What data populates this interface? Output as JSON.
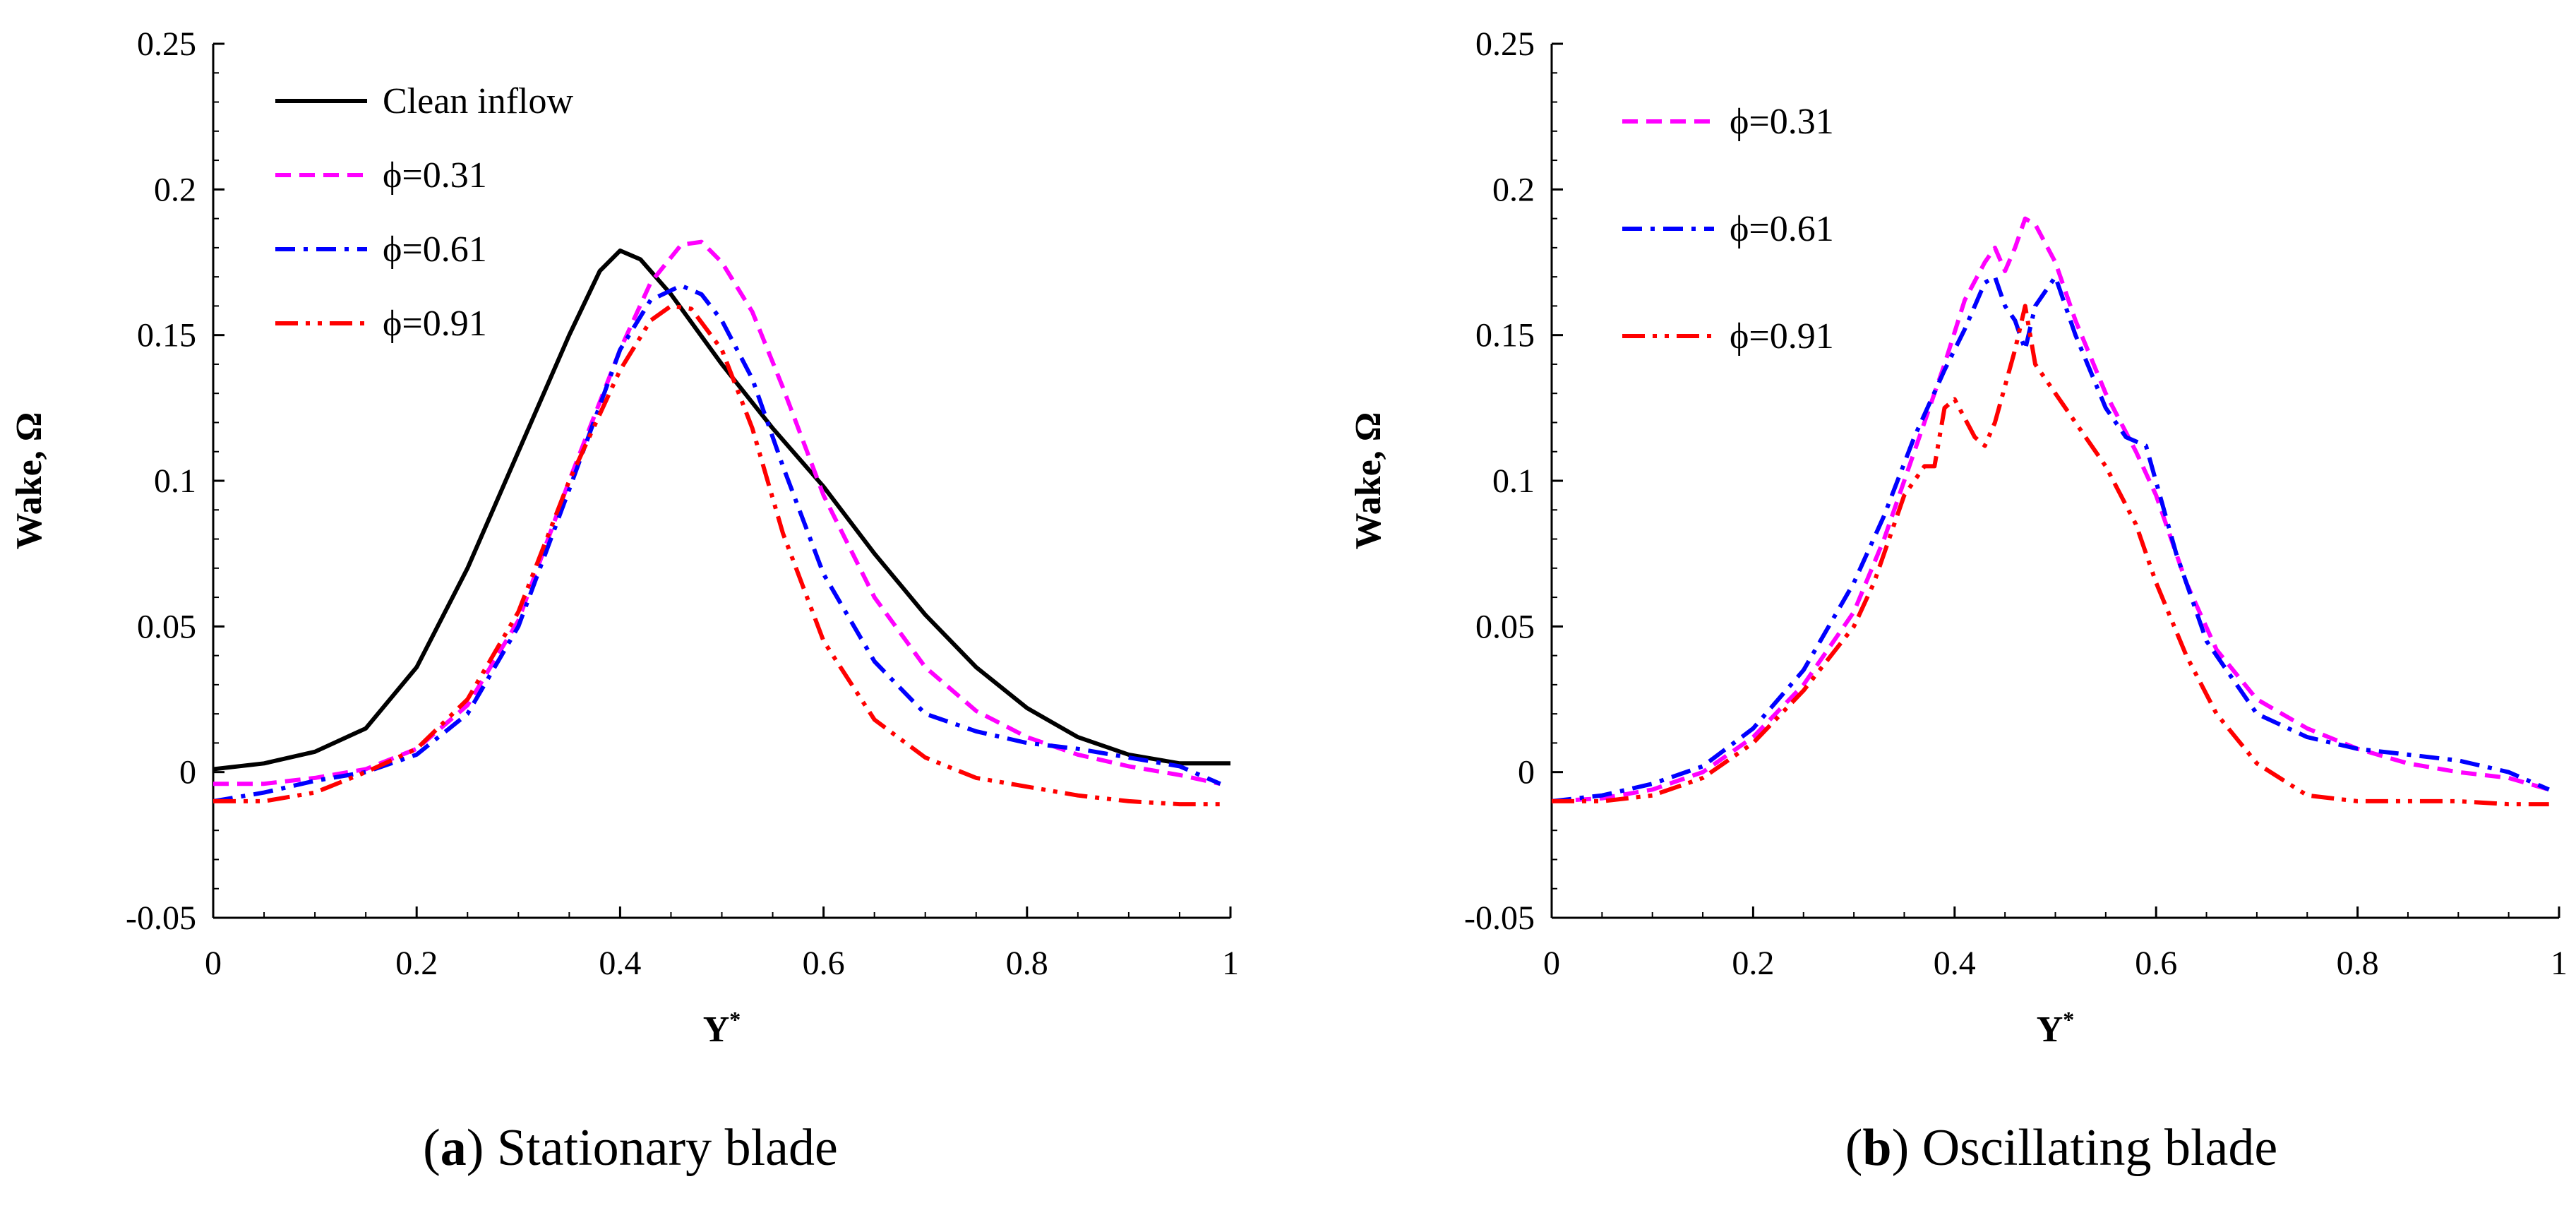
{
  "chart_data": [
    {
      "type": "line",
      "panel_letter": "a",
      "caption": "Stationary blade",
      "xlabel_main": "Y",
      "xlabel_sup": "*",
      "ylabel": "Wake, Ω",
      "xlim": [
        0,
        1
      ],
      "ylim": [
        -0.05,
        0.25
      ],
      "xticks": [
        0,
        0.2,
        0.4,
        0.6,
        0.8,
        1
      ],
      "xtick_labels": [
        "0",
        "0.2",
        "0.4",
        "0.6",
        "0.8",
        "1"
      ],
      "yticks": [
        -0.05,
        0,
        0.05,
        0.1,
        0.15,
        0.2,
        0.25
      ],
      "ytick_labels": [
        "-0.05",
        "0",
        "0.05",
        "0.1",
        "0.15",
        "0.2",
        "0.25"
      ],
      "grid": false,
      "legend_position": "top-left",
      "series": [
        {
          "name": "Clean inflow",
          "color": "#000000",
          "dash": "solid",
          "points": [
            [
              0,
              0.001
            ],
            [
              0.05,
              0.003
            ],
            [
              0.1,
              0.007
            ],
            [
              0.15,
              0.015
            ],
            [
              0.2,
              0.036
            ],
            [
              0.25,
              0.07
            ],
            [
              0.3,
              0.11
            ],
            [
              0.35,
              0.15
            ],
            [
              0.38,
              0.172
            ],
            [
              0.4,
              0.179
            ],
            [
              0.42,
              0.176
            ],
            [
              0.45,
              0.164
            ],
            [
              0.5,
              0.14
            ],
            [
              0.55,
              0.118
            ],
            [
              0.6,
              0.098
            ],
            [
              0.65,
              0.075
            ],
            [
              0.7,
              0.054
            ],
            [
              0.75,
              0.036
            ],
            [
              0.8,
              0.022
            ],
            [
              0.85,
              0.012
            ],
            [
              0.9,
              0.006
            ],
            [
              0.95,
              0.003
            ],
            [
              1,
              0.003
            ]
          ]
        },
        {
          "name": "ϕ=0.31",
          "color": "#ff00ff",
          "dash": "dash",
          "points": [
            [
              0,
              -0.004
            ],
            [
              0.05,
              -0.004
            ],
            [
              0.1,
              -0.002
            ],
            [
              0.15,
              0.001
            ],
            [
              0.2,
              0.008
            ],
            [
              0.25,
              0.023
            ],
            [
              0.3,
              0.052
            ],
            [
              0.35,
              0.1
            ],
            [
              0.4,
              0.145
            ],
            [
              0.43,
              0.168
            ],
            [
              0.46,
              0.181
            ],
            [
              0.48,
              0.182
            ],
            [
              0.5,
              0.175
            ],
            [
              0.53,
              0.158
            ],
            [
              0.56,
              0.132
            ],
            [
              0.6,
              0.095
            ],
            [
              0.65,
              0.06
            ],
            [
              0.7,
              0.036
            ],
            [
              0.75,
              0.021
            ],
            [
              0.8,
              0.012
            ],
            [
              0.85,
              0.006
            ],
            [
              0.9,
              0.002
            ],
            [
              0.95,
              -0.001
            ],
            [
              0.99,
              -0.004
            ]
          ]
        },
        {
          "name": "ϕ=0.61",
          "color": "#0000ff",
          "dash": "dashdot",
          "points": [
            [
              0,
              -0.01
            ],
            [
              0.05,
              -0.007
            ],
            [
              0.1,
              -0.003
            ],
            [
              0.15,
              0.0
            ],
            [
              0.2,
              0.006
            ],
            [
              0.25,
              0.02
            ],
            [
              0.3,
              0.05
            ],
            [
              0.35,
              0.097
            ],
            [
              0.4,
              0.145
            ],
            [
              0.43,
              0.162
            ],
            [
              0.46,
              0.167
            ],
            [
              0.48,
              0.164
            ],
            [
              0.5,
              0.155
            ],
            [
              0.53,
              0.135
            ],
            [
              0.56,
              0.105
            ],
            [
              0.6,
              0.068
            ],
            [
              0.65,
              0.038
            ],
            [
              0.7,
              0.02
            ],
            [
              0.75,
              0.014
            ],
            [
              0.8,
              0.01
            ],
            [
              0.85,
              0.008
            ],
            [
              0.9,
              0.005
            ],
            [
              0.95,
              0.002
            ],
            [
              0.99,
              -0.004
            ]
          ]
        },
        {
          "name": "ϕ=0.91",
          "color": "#ff0000",
          "dash": "dashdotdot",
          "points": [
            [
              0,
              -0.01
            ],
            [
              0.05,
              -0.01
            ],
            [
              0.1,
              -0.007
            ],
            [
              0.15,
              0.0
            ],
            [
              0.2,
              0.008
            ],
            [
              0.25,
              0.025
            ],
            [
              0.3,
              0.055
            ],
            [
              0.35,
              0.1
            ],
            [
              0.4,
              0.138
            ],
            [
              0.43,
              0.155
            ],
            [
              0.45,
              0.16
            ],
            [
              0.47,
              0.159
            ],
            [
              0.5,
              0.145
            ],
            [
              0.53,
              0.118
            ],
            [
              0.56,
              0.082
            ],
            [
              0.6,
              0.045
            ],
            [
              0.65,
              0.018
            ],
            [
              0.7,
              0.005
            ],
            [
              0.75,
              -0.002
            ],
            [
              0.8,
              -0.005
            ],
            [
              0.85,
              -0.008
            ],
            [
              0.9,
              -0.01
            ],
            [
              0.95,
              -0.011
            ],
            [
              0.99,
              -0.011
            ]
          ]
        }
      ]
    },
    {
      "type": "line",
      "panel_letter": "b",
      "caption": "Oscillating blade",
      "xlabel_main": "Y",
      "xlabel_sup": "*",
      "ylabel": "Wake, Ω",
      "xlim": [
        0,
        1
      ],
      "ylim": [
        -0.05,
        0.25
      ],
      "xticks": [
        0,
        0.2,
        0.4,
        0.6,
        0.8,
        1
      ],
      "xtick_labels": [
        "0",
        "0.2",
        "0.4",
        "0.6",
        "0.8",
        "1"
      ],
      "yticks": [
        -0.05,
        0,
        0.05,
        0.1,
        0.15,
        0.2,
        0.25
      ],
      "ytick_labels": [
        "-0.05",
        "0",
        "0.05",
        "0.1",
        "0.15",
        "0.2",
        "0.25"
      ],
      "grid": false,
      "legend_position": "top-left",
      "series": [
        {
          "name": "ϕ=0.31",
          "color": "#ff00ff",
          "dash": "dash",
          "points": [
            [
              0,
              -0.01
            ],
            [
              0.05,
              -0.009
            ],
            [
              0.1,
              -0.006
            ],
            [
              0.15,
              0.0
            ],
            [
              0.2,
              0.012
            ],
            [
              0.25,
              0.03
            ],
            [
              0.3,
              0.055
            ],
            [
              0.33,
              0.08
            ],
            [
              0.36,
              0.11
            ],
            [
              0.39,
              0.14
            ],
            [
              0.41,
              0.162
            ],
            [
              0.43,
              0.175
            ],
            [
              0.44,
              0.18
            ],
            [
              0.45,
              0.172
            ],
            [
              0.46,
              0.18
            ],
            [
              0.47,
              0.19
            ],
            [
              0.48,
              0.188
            ],
            [
              0.5,
              0.175
            ],
            [
              0.52,
              0.155
            ],
            [
              0.55,
              0.13
            ],
            [
              0.58,
              0.11
            ],
            [
              0.6,
              0.095
            ],
            [
              0.63,
              0.065
            ],
            [
              0.66,
              0.042
            ],
            [
              0.7,
              0.025
            ],
            [
              0.75,
              0.015
            ],
            [
              0.8,
              0.008
            ],
            [
              0.85,
              0.003
            ],
            [
              0.9,
              0.0
            ],
            [
              0.95,
              -0.002
            ],
            [
              0.99,
              -0.006
            ]
          ]
        },
        {
          "name": "ϕ=0.61",
          "color": "#0000ff",
          "dash": "dashdot",
          "points": [
            [
              0,
              -0.01
            ],
            [
              0.05,
              -0.008
            ],
            [
              0.1,
              -0.004
            ],
            [
              0.15,
              0.002
            ],
            [
              0.2,
              0.015
            ],
            [
              0.25,
              0.035
            ],
            [
              0.3,
              0.065
            ],
            [
              0.33,
              0.088
            ],
            [
              0.36,
              0.115
            ],
            [
              0.39,
              0.138
            ],
            [
              0.41,
              0.152
            ],
            [
              0.43,
              0.168
            ],
            [
              0.44,
              0.17
            ],
            [
              0.45,
              0.16
            ],
            [
              0.46,
              0.155
            ],
            [
              0.47,
              0.145
            ],
            [
              0.48,
              0.16
            ],
            [
              0.5,
              0.17
            ],
            [
              0.52,
              0.15
            ],
            [
              0.55,
              0.125
            ],
            [
              0.57,
              0.115
            ],
            [
              0.59,
              0.112
            ],
            [
              0.62,
              0.075
            ],
            [
              0.65,
              0.045
            ],
            [
              0.7,
              0.02
            ],
            [
              0.75,
              0.012
            ],
            [
              0.8,
              0.008
            ],
            [
              0.85,
              0.006
            ],
            [
              0.9,
              0.004
            ],
            [
              0.95,
              0.0
            ],
            [
              0.99,
              -0.006
            ]
          ]
        },
        {
          "name": "ϕ=0.91",
          "color": "#ff0000",
          "dash": "dashdotdot",
          "points": [
            [
              0,
              -0.01
            ],
            [
              0.05,
              -0.01
            ],
            [
              0.1,
              -0.008
            ],
            [
              0.15,
              -0.002
            ],
            [
              0.2,
              0.01
            ],
            [
              0.25,
              0.028
            ],
            [
              0.3,
              0.05
            ],
            [
              0.32,
              0.065
            ],
            [
              0.35,
              0.095
            ],
            [
              0.37,
              0.105
            ],
            [
              0.38,
              0.105
            ],
            [
              0.39,
              0.125
            ],
            [
              0.4,
              0.128
            ],
            [
              0.42,
              0.115
            ],
            [
              0.43,
              0.112
            ],
            [
              0.44,
              0.12
            ],
            [
              0.46,
              0.145
            ],
            [
              0.47,
              0.16
            ],
            [
              0.48,
              0.14
            ],
            [
              0.5,
              0.13
            ],
            [
              0.52,
              0.12
            ],
            [
              0.55,
              0.105
            ],
            [
              0.58,
              0.085
            ],
            [
              0.6,
              0.065
            ],
            [
              0.63,
              0.04
            ],
            [
              0.66,
              0.02
            ],
            [
              0.7,
              0.003
            ],
            [
              0.75,
              -0.008
            ],
            [
              0.8,
              -0.01
            ],
            [
              0.85,
              -0.01
            ],
            [
              0.9,
              -0.01
            ],
            [
              0.95,
              -0.011
            ],
            [
              0.99,
              -0.011
            ]
          ]
        }
      ]
    }
  ]
}
